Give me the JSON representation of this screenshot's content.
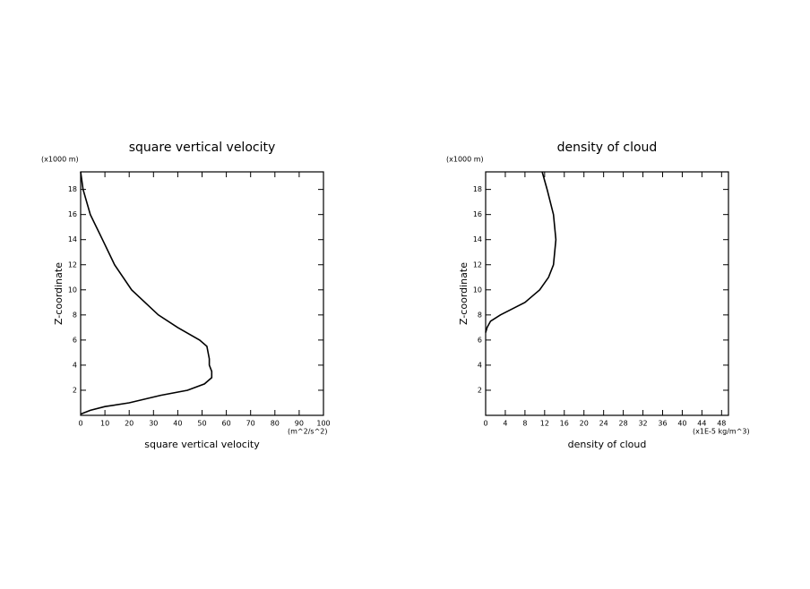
{
  "chart_data": [
    {
      "type": "line",
      "title": "square vertical velocity",
      "xlabel": "square vertical velocity",
      "ylabel": "Z-coordinate",
      "y_unit": "(x1000 m)",
      "x_unit": "(m^2/s^2)",
      "color": "#000000",
      "xlim": [
        0,
        100
      ],
      "xticks": [
        0,
        10,
        20,
        30,
        40,
        50,
        60,
        70,
        80,
        90,
        100
      ],
      "ylim": [
        0,
        19.4
      ],
      "yticks": [
        2,
        4,
        6,
        8,
        10,
        12,
        14,
        16,
        18
      ],
      "x": [
        0,
        1,
        4,
        9,
        14,
        21,
        32,
        40,
        49,
        52,
        53,
        53,
        54,
        54,
        51,
        44,
        33,
        20,
        10,
        4,
        0
      ],
      "y": [
        19.4,
        18,
        16,
        14,
        12,
        10,
        8,
        7,
        6,
        5.5,
        4.5,
        4,
        3.5,
        3,
        2.5,
        2,
        1.6,
        1,
        0.7,
        0.4,
        0.1
      ]
    },
    {
      "type": "line",
      "title": "density of cloud",
      "xlabel": "density of cloud",
      "ylabel": "Z-coordinate",
      "y_unit": "(x1000 m)",
      "x_unit": "(x1E-5 kg/m^3)",
      "color": "#000000",
      "xlim": [
        0,
        49.4
      ],
      "xticks": [
        0,
        4,
        8,
        12,
        16,
        20,
        24,
        28,
        32,
        36,
        40,
        44,
        48
      ],
      "ylim": [
        0,
        19.4
      ],
      "yticks": [
        2,
        4,
        6,
        8,
        10,
        12,
        14,
        16,
        18
      ],
      "x": [
        11.5,
        12.5,
        13.8,
        14.3,
        13.8,
        12.8,
        11,
        9.5,
        8,
        5.5,
        3,
        1,
        0.3,
        0
      ],
      "y": [
        19.4,
        18,
        16,
        14,
        12,
        11,
        10,
        9.5,
        9,
        8.5,
        8,
        7.5,
        7,
        6.6
      ]
    }
  ]
}
